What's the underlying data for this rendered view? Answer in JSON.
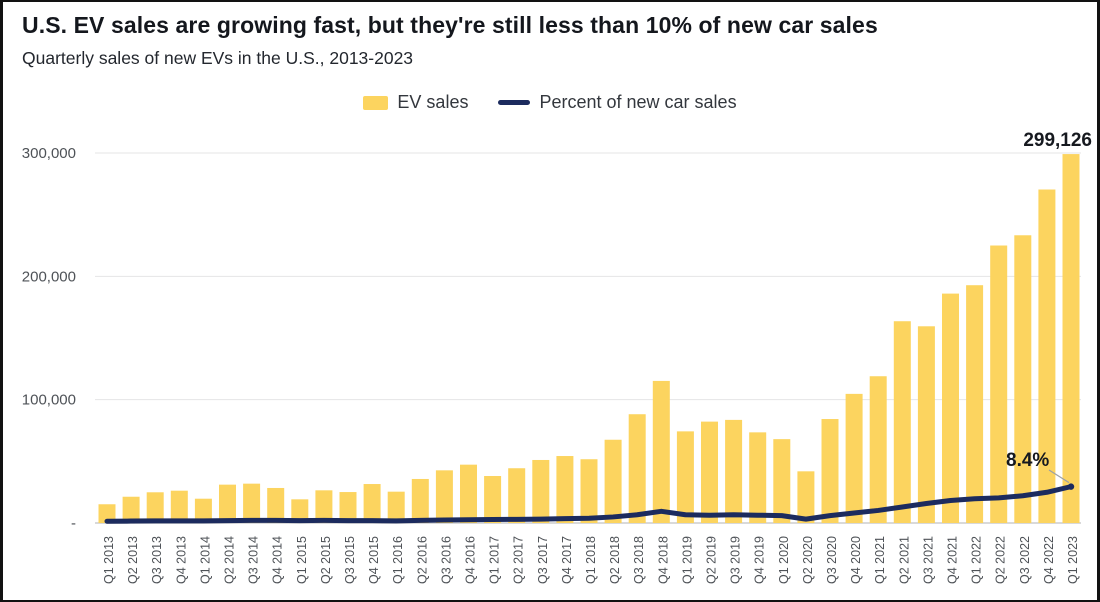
{
  "chart_data": {
    "type": "bar+line",
    "title": "U.S. EV sales are growing fast, but they're still less than 10% of new car sales",
    "subtitle": "Quarterly sales of new EVs in the U.S., 2013-2023",
    "legend_position": "top-center",
    "grid": "horizontal",
    "categories": [
      "Q1 2013",
      "Q2 2013",
      "Q3 2013",
      "Q4 2013",
      "Q1 2014",
      "Q2 2014",
      "Q3 2014",
      "Q4 2014",
      "Q1 2015",
      "Q2 2015",
      "Q3 2015",
      "Q4 2015",
      "Q1 2016",
      "Q2 2016",
      "Q3 2016",
      "Q4 2016",
      "Q1 2017",
      "Q2 2017",
      "Q3 2017",
      "Q4 2017",
      "Q1 2018",
      "Q2 2018",
      "Q3 2018",
      "Q4 2018",
      "Q1 2019",
      "Q2 2019",
      "Q3 2019",
      "Q4 2019",
      "Q1 2020",
      "Q2 2020",
      "Q3 2020",
      "Q4 2020",
      "Q1 2021",
      "Q2 2021",
      "Q3 2021",
      "Q4 2021",
      "Q1 2022",
      "Q2 2022",
      "Q3 2022",
      "Q4 2022",
      "Q1 2023"
    ],
    "series": [
      {
        "name": "EV sales",
        "type": "bar",
        "color": "#FCD45F",
        "values": [
          15200,
          21300,
          24900,
          26200,
          19700,
          31100,
          31900,
          28400,
          19200,
          26500,
          25100,
          31600,
          25400,
          35700,
          42700,
          47300,
          38100,
          44400,
          51100,
          54300,
          51700,
          67500,
          88200,
          115200,
          74300,
          82200,
          83600,
          73500,
          68000,
          41900,
          84300,
          104700,
          119000,
          163600,
          159500,
          186000,
          192800,
          225000,
          233300,
          270400,
          299126
        ]
      },
      {
        "name": "Percent of new car sales",
        "type": "line",
        "color": "#1C2B5E",
        "unit": "%",
        "values": [
          0.4,
          0.45,
          0.5,
          0.5,
          0.5,
          0.55,
          0.6,
          0.6,
          0.55,
          0.6,
          0.55,
          0.55,
          0.5,
          0.6,
          0.7,
          0.75,
          0.8,
          0.85,
          0.9,
          1.0,
          1.1,
          1.4,
          1.9,
          2.7,
          1.9,
          1.8,
          1.9,
          1.8,
          1.7,
          0.9,
          1.7,
          2.3,
          2.9,
          3.7,
          4.5,
          5.2,
          5.6,
          5.8,
          6.3,
          7.1,
          8.4
        ]
      }
    ],
    "y_axis": {
      "max": 300000,
      "ticks": [
        {
          "label": "300,000",
          "value": 300000
        },
        {
          "label": "200,000",
          "value": 200000
        },
        {
          "label": "100,000",
          "value": 100000
        },
        {
          "label": "-",
          "value": 0
        }
      ]
    },
    "annotations": [
      {
        "text": "299,126",
        "target": "Q1 2023 EV sales bar"
      },
      {
        "text": "8.4%",
        "target": "Q1 2023 percent of new car sales"
      }
    ],
    "colors": {
      "bar": "#FCD45F",
      "line": "#1C2B5E",
      "gridline": "#E5E5E6",
      "axis_line": "#D9D9D9",
      "tick_text": "#4E5257",
      "annotation_text": "#16191F",
      "connector": "#9BA0A6"
    }
  }
}
